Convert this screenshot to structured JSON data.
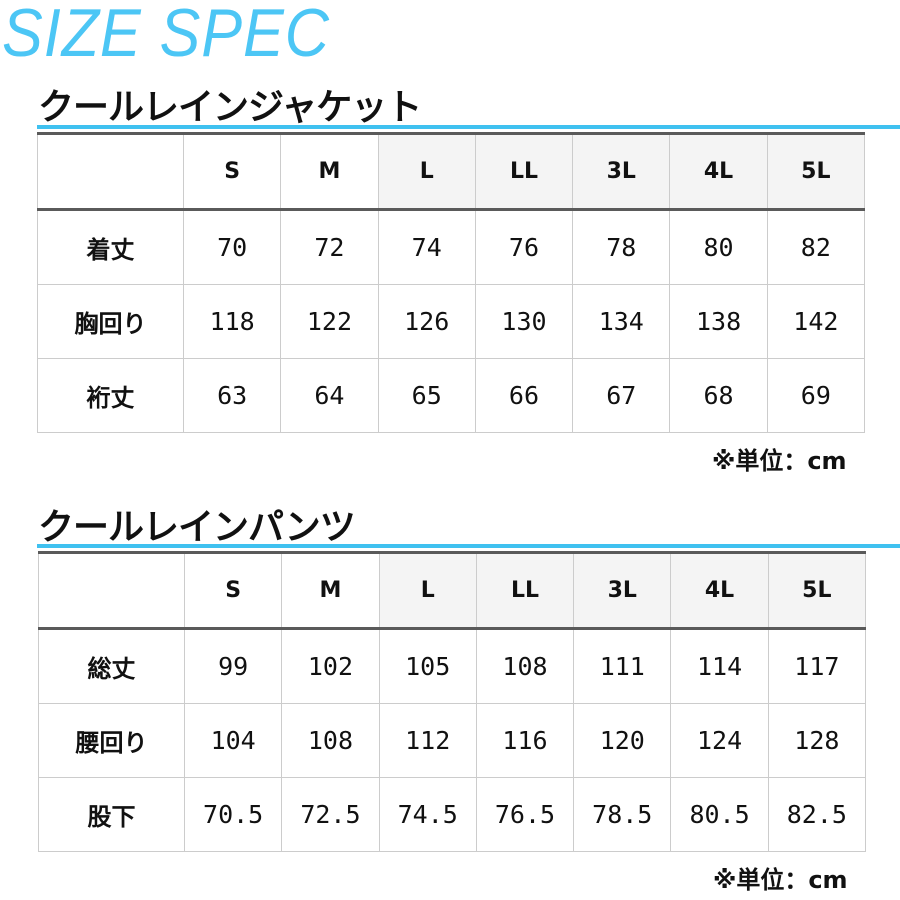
{
  "logo": "SIZE SPEC",
  "unit_note": "※単位：cm",
  "tables": [
    {
      "title": "クールレインジャケット",
      "sizes": [
        "S",
        "M",
        "L",
        "LL",
        "3L",
        "4L",
        "5L"
      ],
      "rows": [
        {
          "label": "着丈",
          "values": [
            "70",
            "72",
            "74",
            "76",
            "78",
            "80",
            "82"
          ]
        },
        {
          "label": "胸回り",
          "values": [
            "118",
            "122",
            "126",
            "130",
            "134",
            "138",
            "142"
          ]
        },
        {
          "label": "裄丈",
          "values": [
            "63",
            "64",
            "65",
            "66",
            "67",
            "68",
            "69"
          ]
        }
      ]
    },
    {
      "title": "クールレインパンツ",
      "sizes": [
        "S",
        "M",
        "L",
        "LL",
        "3L",
        "4L",
        "5L"
      ],
      "rows": [
        {
          "label": "総丈",
          "values": [
            "99",
            "102",
            "105",
            "108",
            "111",
            "114",
            "117"
          ]
        },
        {
          "label": "腰回り",
          "values": [
            "104",
            "108",
            "112",
            "116",
            "120",
            "124",
            "128"
          ]
        },
        {
          "label": "股下",
          "values": [
            "70.5",
            "72.5",
            "74.5",
            "76.5",
            "78.5",
            "80.5",
            "82.5"
          ]
        }
      ]
    }
  ],
  "colors": {
    "accent": "#3fc1f0",
    "logo": "#4cc6f5",
    "rule": "#5a5a5a"
  }
}
